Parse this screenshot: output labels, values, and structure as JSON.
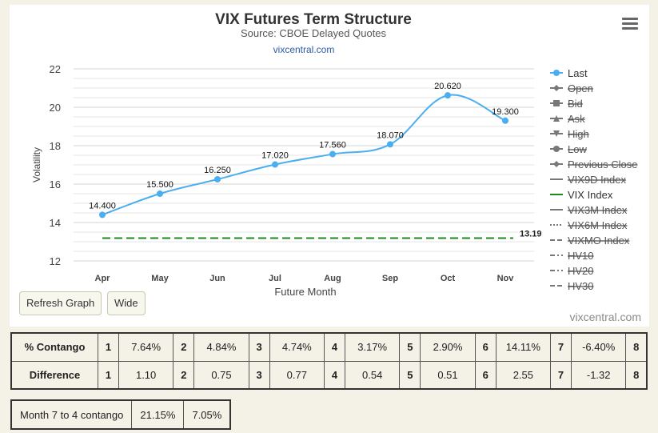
{
  "chart_data": {
    "type": "line",
    "title": "VIX Futures Term Structure",
    "subtitle": "Source: CBOE Delayed Quotes",
    "site_link": "vixcentral.com",
    "credit": "vixcentral.com",
    "xlabel": "Future Month",
    "ylabel": "Volatility",
    "categories": [
      "Apr",
      "May",
      "Jun",
      "Jul",
      "Aug",
      "Sep",
      "Oct",
      "Nov"
    ],
    "ylim": [
      12,
      22
    ],
    "yticks": [
      12,
      14,
      16,
      18,
      20,
      22
    ],
    "grid": true,
    "legend_position": "right",
    "series": [
      {
        "name": "Last",
        "values": [
          14.4,
          15.5,
          16.25,
          17.02,
          17.56,
          18.07,
          20.62,
          19.3
        ],
        "labels": [
          "14.400",
          "15.500",
          "16.250",
          "17.020",
          "17.560",
          "18.070",
          "20.620",
          "19.300"
        ],
        "color": "#4aaeef"
      },
      {
        "name": "VIX Index",
        "values": [
          13.19,
          13.19,
          13.19,
          13.19,
          13.19,
          13.19,
          13.19,
          13.19
        ],
        "end_label": "13.19",
        "color": "#1c8a1c"
      }
    ],
    "legend": [
      {
        "name": "Last",
        "symbol": "circle",
        "line": "solid",
        "active": true,
        "color": "#4aaeef"
      },
      {
        "name": "Open",
        "symbol": "diamond",
        "line": "solid",
        "active": false,
        "color": "#777777"
      },
      {
        "name": "Bid",
        "symbol": "square",
        "line": "solid",
        "active": false,
        "color": "#777777"
      },
      {
        "name": "Ask",
        "symbol": "triangle",
        "line": "solid",
        "active": false,
        "color": "#777777"
      },
      {
        "name": "High",
        "symbol": "triangle-down",
        "line": "solid",
        "active": false,
        "color": "#777777"
      },
      {
        "name": "Low",
        "symbol": "circle",
        "line": "solid",
        "active": false,
        "color": "#777777"
      },
      {
        "name": "Previous Close",
        "symbol": "diamond",
        "line": "solid",
        "active": false,
        "color": "#777777"
      },
      {
        "name": "VIX9D Index",
        "symbol": "none",
        "line": "solid",
        "active": false,
        "color": "#777777"
      },
      {
        "name": "VIX Index",
        "symbol": "none",
        "line": "solid",
        "active": true,
        "color": "#1c8a1c"
      },
      {
        "name": "VIX3M Index",
        "symbol": "none",
        "line": "solid",
        "active": false,
        "color": "#777777"
      },
      {
        "name": "VIX6M Index",
        "symbol": "none",
        "line": "dotted",
        "active": false,
        "color": "#777777"
      },
      {
        "name": "VIXMO Index",
        "symbol": "none",
        "line": "dashed",
        "active": false,
        "color": "#777777"
      },
      {
        "name": "HV10",
        "symbol": "none",
        "line": "dashdot",
        "active": false,
        "color": "#777777"
      },
      {
        "name": "HV20",
        "symbol": "none",
        "line": "dashdot",
        "active": false,
        "color": "#777777"
      },
      {
        "name": "HV30",
        "symbol": "none",
        "line": "dashed",
        "active": false,
        "color": "#777777"
      }
    ]
  },
  "buttons": {
    "refresh": "Refresh Graph",
    "wide": "Wide"
  },
  "contango_table": {
    "rows": [
      {
        "label": "% Contango",
        "cells": [
          {
            "month": "1",
            "value": "7.64%"
          },
          {
            "month": "2",
            "value": "4.84%"
          },
          {
            "month": "3",
            "value": "4.74%"
          },
          {
            "month": "4",
            "value": "3.17%"
          },
          {
            "month": "5",
            "value": "2.90%"
          },
          {
            "month": "6",
            "value": "14.11%"
          },
          {
            "month": "7",
            "value": "-6.40%"
          }
        ],
        "last_month": "8"
      },
      {
        "label": "Difference",
        "cells": [
          {
            "month": "1",
            "value": "1.10"
          },
          {
            "month": "2",
            "value": "0.75"
          },
          {
            "month": "3",
            "value": "0.77"
          },
          {
            "month": "4",
            "value": "0.54"
          },
          {
            "month": "5",
            "value": "0.51"
          },
          {
            "month": "6",
            "value": "2.55"
          },
          {
            "month": "7",
            "value": "-1.32"
          }
        ],
        "last_month": "8"
      }
    ]
  },
  "summary_table": {
    "label": "Month 7 to 4 contango",
    "value1": "21.15%",
    "value2": "7.05%"
  }
}
